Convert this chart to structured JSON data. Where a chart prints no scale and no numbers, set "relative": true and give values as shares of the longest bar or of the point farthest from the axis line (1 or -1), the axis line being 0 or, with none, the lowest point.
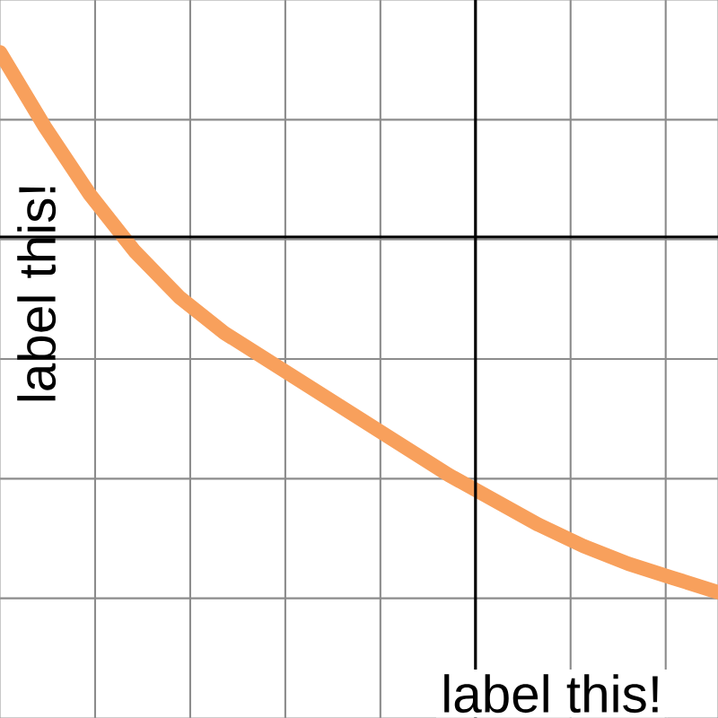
{
  "chart_data": {
    "type": "line",
    "relative": true,
    "xlabel": "label this!",
    "ylabel": "label this!",
    "grid": true,
    "categories": [
      null,
      null,
      null,
      null,
      null,
      null,
      null,
      null,
      null,
      null,
      null,
      null,
      null,
      null,
      null,
      null,
      null
    ],
    "series": [
      {
        "color": "#f8a05c",
        "values": [
          0.52,
          0.31,
          0.12,
          -0.04,
          -0.17,
          -0.27,
          -0.35,
          -0.43,
          -0.51,
          -0.59,
          -0.67,
          -0.74,
          -0.81,
          -0.87,
          -0.92,
          -0.96,
          -1.0
        ]
      }
    ]
  }
}
